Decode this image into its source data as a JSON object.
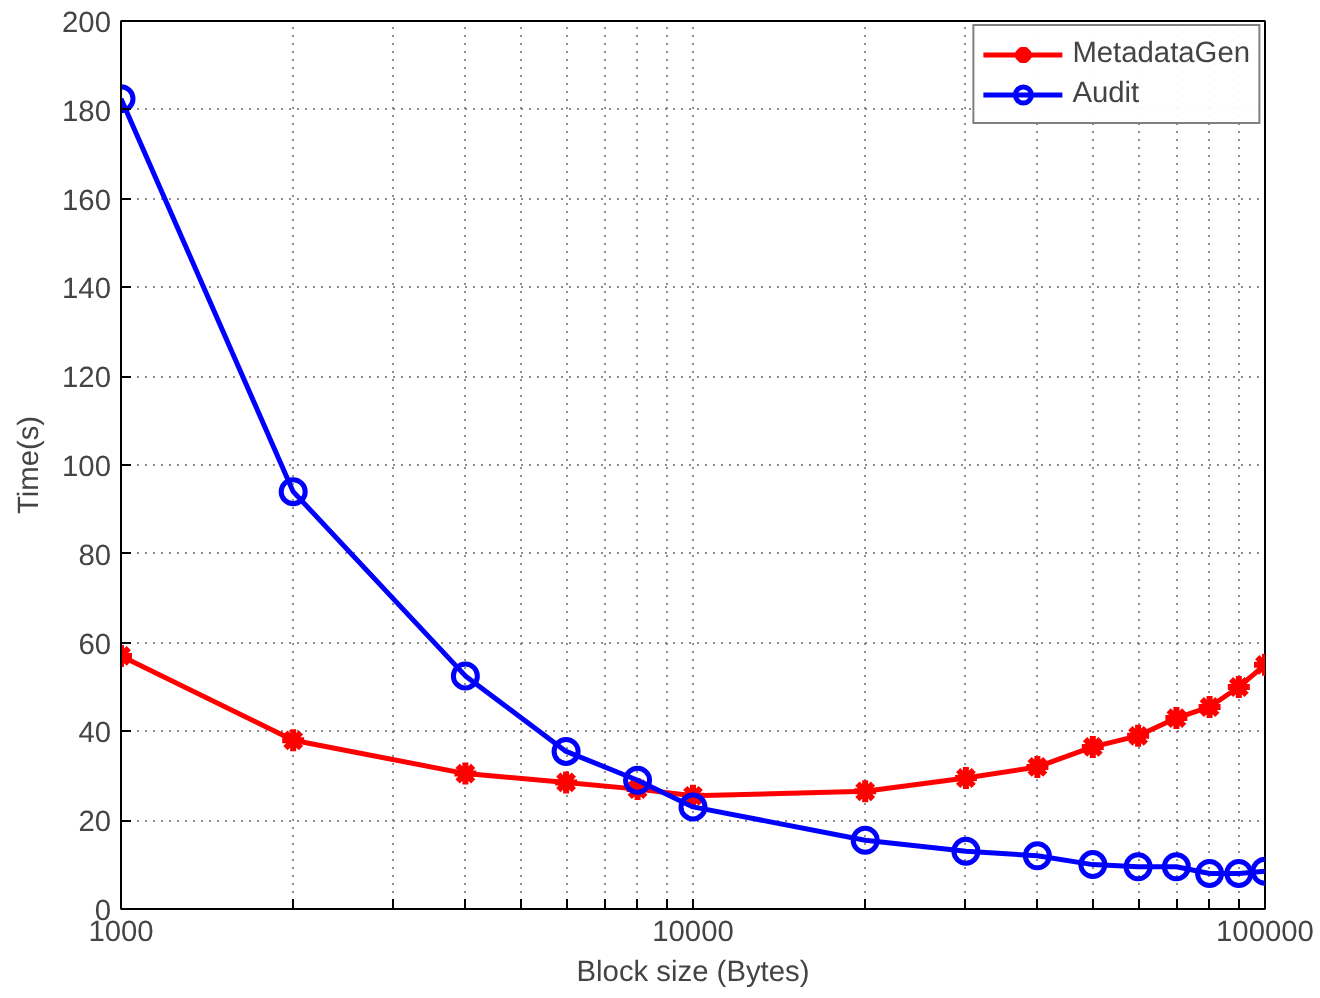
{
  "chart_data": {
    "type": "line",
    "xlabel": "Block size (Bytes)",
    "ylabel": "Time(s)",
    "log": "x",
    "x": [
      1000,
      2000,
      4000,
      6000,
      8000,
      10000,
      20000,
      30000,
      40000,
      50000,
      60000,
      70000,
      80000,
      90000,
      100000
    ],
    "series": [
      {
        "name": "MetadataGen",
        "color": "#ff0000",
        "marker": "cross",
        "values": [
          57,
          38,
          30.5,
          28.5,
          27,
          25.5,
          26.5,
          29.5,
          32,
          36.5,
          39,
          43,
          45.5,
          50,
          55
        ]
      },
      {
        "name": "Audit",
        "color": "#0000ff",
        "marker": "circle",
        "values": [
          182.5,
          94,
          52.5,
          35.5,
          29,
          23,
          15.5,
          13,
          12,
          10,
          9.5,
          9.5,
          8,
          8,
          8.5
        ]
      }
    ],
    "xlim": [
      1000,
      100000
    ],
    "ylim": [
      0,
      200
    ],
    "xticks": [
      1000,
      {
        "value": 2000,
        "label": null
      },
      {
        "value": 3000,
        "label": null
      },
      {
        "value": 4000,
        "label": null
      },
      {
        "value": 5000,
        "label": null
      },
      {
        "value": 6000,
        "label": null
      },
      {
        "value": 7000,
        "label": null
      },
      {
        "value": 8000,
        "label": null
      },
      {
        "value": 9000,
        "label": null
      },
      10000,
      {
        "value": 20000,
        "label": null
      },
      {
        "value": 30000,
        "label": null
      },
      {
        "value": 40000,
        "label": null
      },
      {
        "value": 50000,
        "label": null
      },
      {
        "value": 60000,
        "label": null
      },
      {
        "value": 70000,
        "label": null
      },
      {
        "value": 80000,
        "label": null
      },
      {
        "value": 90000,
        "label": null
      },
      100000
    ],
    "yticks": [
      0,
      20,
      40,
      60,
      80,
      100,
      120,
      140,
      160,
      180,
      200
    ],
    "grid": true,
    "legend": "top right",
    "line_style": "solid"
  }
}
